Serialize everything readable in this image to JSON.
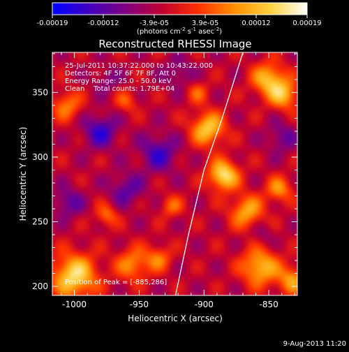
{
  "colorbar": {
    "min": -0.00019,
    "max": 0.00019,
    "tick_labels": [
      "-0.00019",
      "-0.00012",
      "-3.9e-05",
      "3.9e-05",
      "0.00012",
      "0.00019"
    ],
    "unit_prefix": "(photons cm",
    "unit_exp1": "-2",
    "unit_mid": " s",
    "unit_exp2": "-1",
    "unit_mid2": " asec",
    "unit_exp3": "-2",
    "unit_suffix": ")",
    "colormap": [
      "#0000ff",
      "#4000c0",
      "#800080",
      "#c00030",
      "#ff3000",
      "#ff9000",
      "#ffd040",
      "#ffffff"
    ]
  },
  "chart_data": {
    "type": "heatmap",
    "title": "Reconstructed RHESSI Image",
    "xlabel": "Heliocentric X (arcsec)",
    "ylabel": "Heliocentric Y (arcsec)",
    "xlim": [
      -1017,
      -828
    ],
    "ylim": [
      193,
      381
    ],
    "xticks": [
      -1000,
      -950,
      -900,
      -850
    ],
    "yticks": [
      200,
      250,
      300,
      350
    ],
    "peak": {
      "x": -885,
      "y": 286
    },
    "limb_curve": [
      [
        -922,
        193
      ],
      [
        -912,
        240
      ],
      [
        -900,
        290
      ],
      [
        -886,
        330
      ],
      [
        -870,
        381
      ]
    ],
    "sources": [
      {
        "x": -885,
        "y": 286,
        "value": 0.00019,
        "sigma": 8
      },
      {
        "x": -897,
        "y": 322,
        "value": 0.00016,
        "sigma": 9
      },
      {
        "x": -1000,
        "y": 208,
        "value": 0.00018,
        "sigma": 12
      },
      {
        "x": -850,
        "y": 360,
        "value": 0.00015,
        "sigma": 9
      },
      {
        "x": -838,
        "y": 348,
        "value": 0.00013,
        "sigma": 8
      },
      {
        "x": -867,
        "y": 258,
        "value": 0.00013,
        "sigma": 9
      },
      {
        "x": -842,
        "y": 275,
        "value": 0.00011,
        "sigma": 7
      },
      {
        "x": -857,
        "y": 215,
        "value": 0.00015,
        "sigma": 10
      },
      {
        "x": -832,
        "y": 205,
        "value": 0.00012,
        "sigma": 8
      },
      {
        "x": -955,
        "y": 217,
        "value": 0.00011,
        "sigma": 9
      },
      {
        "x": -935,
        "y": 222,
        "value": 9e-05,
        "sigma": 7
      },
      {
        "x": -1006,
        "y": 340,
        "value": 0.0001,
        "sigma": 8
      },
      {
        "x": -975,
        "y": 255,
        "value": 9e-05,
        "sigma": 6
      },
      {
        "x": -925,
        "y": 262,
        "value": 8e-05,
        "sigma": 6
      },
      {
        "x": -960,
        "y": 343,
        "value": 7e-05,
        "sigma": 6
      },
      {
        "x": -905,
        "y": 350,
        "value": 7e-05,
        "sigma": 6
      },
      {
        "x": -980,
        "y": 320,
        "value": -0.00011,
        "sigma": 9
      },
      {
        "x": -935,
        "y": 303,
        "value": -0.0001,
        "sigma": 10
      },
      {
        "x": -960,
        "y": 275,
        "value": -8e-05,
        "sigma": 9
      },
      {
        "x": -1005,
        "y": 265,
        "value": -8e-05,
        "sigma": 8
      },
      {
        "x": -840,
        "y": 315,
        "value": -7e-05,
        "sigma": 8
      },
      {
        "x": -855,
        "y": 240,
        "value": -4e-05,
        "sigma": 6
      },
      {
        "x": -920,
        "y": 365,
        "value": -6e-05,
        "sigma": 8
      },
      {
        "x": -975,
        "y": 360,
        "value": -5e-05,
        "sigma": 7
      }
    ],
    "background": -3e-05
  },
  "overlay": {
    "line1": "25-Jul-2011 10:37:22.000 to 10:43:22.000",
    "line2": "Detectors: 4F 5F 6F 7F 8F, Att 0",
    "line3": "Energy Range: 25.0 - 50.0 keV",
    "line4": "Clean    Total counts: 1.79E+04",
    "peak_label": "Position of Peak = [-885,286]"
  },
  "footer": {
    "date": "9-Aug-2013 11:20"
  }
}
